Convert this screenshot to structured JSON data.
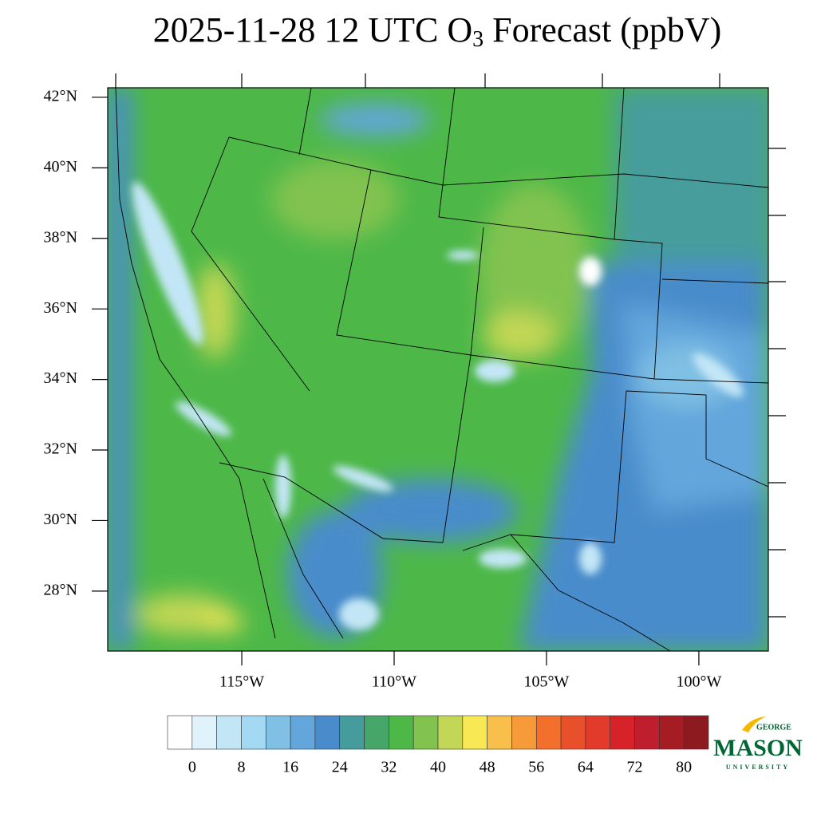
{
  "map": {
    "title": {
      "before": "2025-11-28 12 UTC O",
      "subscript": "3",
      "after": " Forecast (ppbV)"
    },
    "ylim": [
      26.3,
      42.27
    ],
    "yticks": [
      {
        "value": 42,
        "label": "42°N"
      },
      {
        "value": 40,
        "label": "40°N"
      },
      {
        "value": 38,
        "label": "38°N"
      },
      {
        "value": 36,
        "label": "36°N"
      },
      {
        "value": 34,
        "label": "34°N"
      },
      {
        "value": 32,
        "label": "32°N"
      },
      {
        "value": 30,
        "label": "30°N"
      },
      {
        "value": 28,
        "label": "28°N"
      }
    ],
    "xlim": [
      -119.4,
      -97.72
    ],
    "xticks": [
      {
        "value": -115,
        "label": "115°W"
      },
      {
        "value": -110,
        "label": "110°W"
      },
      {
        "value": -105,
        "label": "105°W"
      },
      {
        "value": -100,
        "label": "100°W"
      }
    ],
    "colorbar": {
      "lim": [
        -4,
        84
      ],
      "colors": [
        "#ffffff",
        "#e0f2fb",
        "#c3e6f6",
        "#a3d9f2",
        "#80c0e4",
        "#62a6dc",
        "#4a8ccb",
        "#469c9c",
        "#46a66a",
        "#4db848",
        "#82c350",
        "#c2d755",
        "#f7e854",
        "#f8c04a",
        "#f79a3a",
        "#f2702c",
        "#e8502b",
        "#e23a2b",
        "#d6232a",
        "#bf1e2d",
        "#a51c23",
        "#8c1a1e"
      ],
      "ticks": [
        0,
        8,
        16,
        24,
        32,
        40,
        48,
        56,
        64,
        72,
        80
      ]
    }
  },
  "logo": {
    "top": "GEORGE",
    "main": "MASON",
    "bottom": "UNIVERSITY"
  }
}
